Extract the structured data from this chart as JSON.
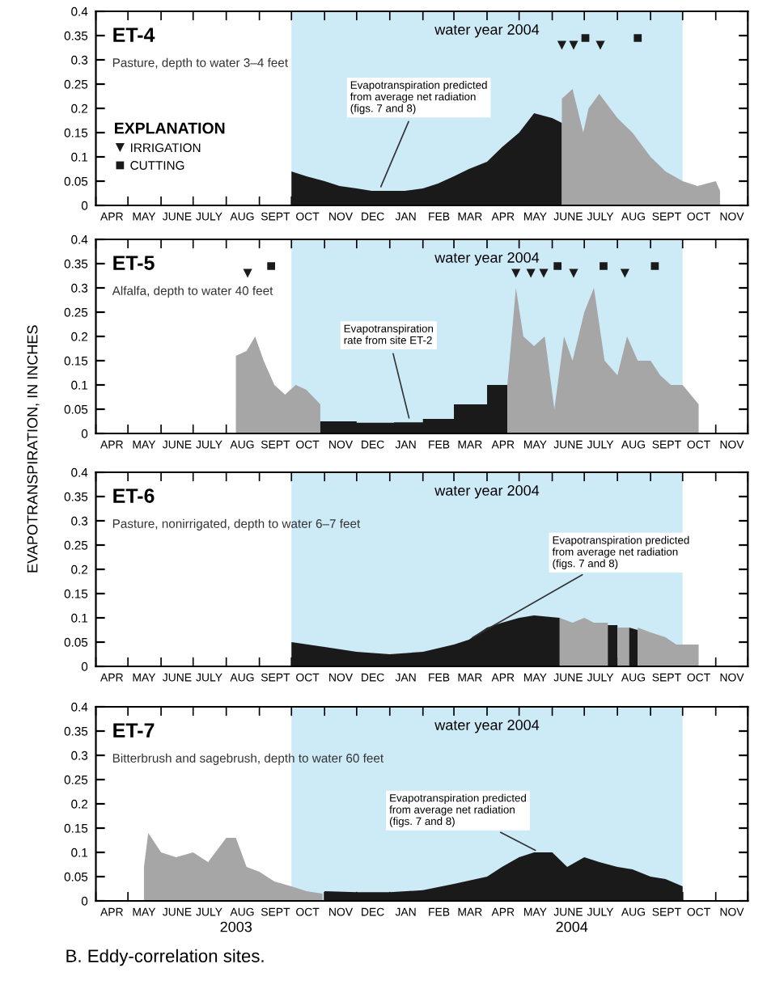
{
  "chart_data": [
    {
      "type": "area",
      "title": "ET-4",
      "subtitle": "Pasture, depth to water 3–4 feet",
      "legend_title": "EXPLANATION",
      "legend": "left",
      "xlim": [
        "2003-04-01",
        "2004-12-01"
      ],
      "ylim": [
        0,
        0.4
      ],
      "yticks": [
        0,
        0.05,
        0.1,
        0.15,
        0.2,
        0.25,
        0.3,
        0.35,
        0.4
      ],
      "xticks": [
        {
          "value": "2003-04-01",
          "label": null
        },
        {
          "value": "2003-04-16",
          "label": "APR"
        },
        {
          "value": "2003-05-01",
          "label": null
        },
        {
          "value": "2003-05-16",
          "label": "MAY"
        },
        {
          "value": "2003-06-01",
          "label": null
        },
        {
          "value": "2003-06-16",
          "label": "JUNE"
        },
        {
          "value": "2003-07-01",
          "label": null
        },
        {
          "value": "2003-07-16",
          "label": "JULY"
        },
        {
          "value": "2003-08-01",
          "label": null
        },
        {
          "value": "2003-08-16",
          "label": "AUG"
        },
        {
          "value": "2003-09-01",
          "label": null
        },
        {
          "value": "2003-09-16",
          "label": "SEPT"
        },
        {
          "value": "2003-10-01",
          "label": null
        },
        {
          "value": "2003-10-16",
          "label": "OCT"
        },
        {
          "value": "2003-11-01",
          "label": null
        },
        {
          "value": "2003-11-16",
          "label": "NOV"
        },
        {
          "value": "2003-12-01",
          "label": null
        },
        {
          "value": "2003-12-16",
          "label": "DEC"
        },
        {
          "value": "2004-01-01",
          "label": null
        },
        {
          "value": "2004-01-16",
          "label": "JAN"
        },
        {
          "value": "2004-02-01",
          "label": null
        },
        {
          "value": "2004-02-16",
          "label": "FEB"
        },
        {
          "value": "2004-03-01",
          "label": null
        },
        {
          "value": "2004-03-16",
          "label": "MAR"
        },
        {
          "value": "2004-04-01",
          "label": null
        },
        {
          "value": "2004-04-16",
          "label": "APR"
        },
        {
          "value": "2004-05-01",
          "label": null
        },
        {
          "value": "2004-05-16",
          "label": "MAY"
        },
        {
          "value": "2004-06-01",
          "label": null
        },
        {
          "value": "2004-06-16",
          "label": "JUNE"
        },
        {
          "value": "2004-07-01",
          "label": null
        },
        {
          "value": "2004-07-16",
          "label": "JULY"
        },
        {
          "value": "2004-08-01",
          "label": null
        },
        {
          "value": "2004-08-16",
          "label": "AUG"
        },
        {
          "value": "2004-09-01",
          "label": null
        },
        {
          "value": "2004-09-16",
          "label": "SEPT"
        },
        {
          "value": "2004-10-01",
          "label": null
        },
        {
          "value": "2004-10-16",
          "label": "OCT"
        },
        {
          "value": "2004-11-01",
          "label": null
        },
        {
          "value": "2004-11-16",
          "label": "NOV"
        },
        {
          "value": "2004-12-01",
          "label": null
        }
      ],
      "bands": [
        {
          "axis": "x",
          "from": "2003-10-01",
          "to": "2004-10-01",
          "label": "water year 2004",
          "color": "#cdeaf7"
        }
      ],
      "series": [
        {
          "color": "#1a1a1a",
          "x": [
            "2003-10-01",
            "2003-10-15",
            "2003-11-01",
            "2003-11-15",
            "2003-12-01",
            "2003-12-15",
            "2004-01-01",
            "2004-01-15",
            "2004-02-01",
            "2004-02-15",
            "2004-03-01",
            "2004-03-15",
            "2004-04-01",
            "2004-04-15",
            "2004-05-01",
            "2004-05-15",
            "2004-06-01",
            "2004-06-10"
          ],
          "values": [
            0.07,
            0.06,
            0.05,
            0.04,
            0.035,
            0.03,
            0.03,
            0.03,
            0.035,
            0.045,
            0.06,
            0.075,
            0.09,
            0.12,
            0.15,
            0.19,
            0.18,
            0.17
          ]
        },
        {
          "color": "#a6a6a6",
          "x": [
            "2004-06-10",
            "2004-06-20",
            "2004-06-30",
            "2004-07-05",
            "2004-07-15",
            "2004-08-01",
            "2004-08-15",
            "2004-09-01",
            "2004-09-15",
            "2004-10-01",
            "2004-10-15",
            "2004-11-01",
            "2004-11-05"
          ],
          "values": [
            0.22,
            0.24,
            0.15,
            0.2,
            0.23,
            0.18,
            0.15,
            0.1,
            0.07,
            0.05,
            0.04,
            0.05,
            0.03
          ]
        },
        {
          "type": "scatter",
          "name": "IRRIGATION",
          "marker": "triangle",
          "color": "#1a1a1a",
          "x": [
            "2004-06-10",
            "2004-06-21",
            "2004-07-16"
          ],
          "values": [
            0.33,
            0.33,
            0.33
          ]
        },
        {
          "type": "scatter",
          "name": "CUTTING",
          "marker": "square",
          "color": "#1a1a1a",
          "x": [
            "2004-07-02",
            "2004-08-20"
          ],
          "values": [
            0.345,
            0.345
          ]
        }
      ],
      "annotations": [
        {
          "text": "Evapotranspiration predicted\nfrom average net radiation\n(figs. 7 and 8)",
          "x": "2003-12-22",
          "y": 0.03
        }
      ]
    },
    {
      "type": "area",
      "title": "ET-5",
      "subtitle": "Alfalfa, depth to water 40 feet",
      "ylabel": "EVAPOTRANSPIRATION, IN INCHES",
      "xlim": [
        "2003-04-01",
        "2004-12-01"
      ],
      "ylim": [
        0,
        0.4
      ],
      "yticks": [
        0,
        0.05,
        0.1,
        0.15,
        0.2,
        0.25,
        0.3,
        0.35,
        0.4
      ],
      "xticks": [
        {
          "value": "2003-04-01",
          "label": null
        },
        {
          "value": "2003-04-16",
          "label": "APR"
        },
        {
          "value": "2003-05-01",
          "label": null
        },
        {
          "value": "2003-05-16",
          "label": "MAY"
        },
        {
          "value": "2003-06-01",
          "label": null
        },
        {
          "value": "2003-06-16",
          "label": "JUNE"
        },
        {
          "value": "2003-07-01",
          "label": null
        },
        {
          "value": "2003-07-16",
          "label": "JULY"
        },
        {
          "value": "2003-08-01",
          "label": null
        },
        {
          "value": "2003-08-16",
          "label": "AUG"
        },
        {
          "value": "2003-09-01",
          "label": null
        },
        {
          "value": "2003-09-16",
          "label": "SEPT"
        },
        {
          "value": "2003-10-01",
          "label": null
        },
        {
          "value": "2003-10-16",
          "label": "OCT"
        },
        {
          "value": "2003-11-01",
          "label": null
        },
        {
          "value": "2003-11-16",
          "label": "NOV"
        },
        {
          "value": "2003-12-01",
          "label": null
        },
        {
          "value": "2003-12-16",
          "label": "DEC"
        },
        {
          "value": "2004-01-01",
          "label": null
        },
        {
          "value": "2004-01-16",
          "label": "JAN"
        },
        {
          "value": "2004-02-01",
          "label": null
        },
        {
          "value": "2004-02-16",
          "label": "FEB"
        },
        {
          "value": "2004-03-01",
          "label": null
        },
        {
          "value": "2004-03-16",
          "label": "MAR"
        },
        {
          "value": "2004-04-01",
          "label": null
        },
        {
          "value": "2004-04-16",
          "label": "APR"
        },
        {
          "value": "2004-05-01",
          "label": null
        },
        {
          "value": "2004-05-16",
          "label": "MAY"
        },
        {
          "value": "2004-06-01",
          "label": null
        },
        {
          "value": "2004-06-16",
          "label": "JUNE"
        },
        {
          "value": "2004-07-01",
          "label": null
        },
        {
          "value": "2004-07-16",
          "label": "JULY"
        },
        {
          "value": "2004-08-01",
          "label": null
        },
        {
          "value": "2004-08-16",
          "label": "AUG"
        },
        {
          "value": "2004-09-01",
          "label": null
        },
        {
          "value": "2004-09-16",
          "label": "SEPT"
        },
        {
          "value": "2004-10-01",
          "label": null
        },
        {
          "value": "2004-10-16",
          "label": "OCT"
        },
        {
          "value": "2004-11-01",
          "label": null
        },
        {
          "value": "2004-11-16",
          "label": "NOV"
        },
        {
          "value": "2004-12-01",
          "label": null
        }
      ],
      "bands": [
        {
          "axis": "x",
          "from": "2003-10-01",
          "to": "2004-10-01",
          "label": "water year 2004",
          "color": "#cdeaf7"
        }
      ],
      "series": [
        {
          "color": "#a6a6a6",
          "x": [
            "2003-08-10",
            "2003-08-20",
            "2003-08-28",
            "2003-09-05",
            "2003-09-15",
            "2003-09-25",
            "2003-10-05",
            "2003-10-15",
            "2003-10-28"
          ],
          "values": [
            0.16,
            0.17,
            0.2,
            0.15,
            0.1,
            0.08,
            0.1,
            0.09,
            0.06
          ]
        },
        {
          "color": "#1a1a1a",
          "x": [
            "2003-10-28",
            "2003-12-01",
            "2003-12-01",
            "2004-01-05",
            "2004-01-05",
            "2004-02-01",
            "2004-02-01",
            "2004-03-01",
            "2004-03-01",
            "2004-04-01",
            "2004-04-01",
            "2004-04-20"
          ],
          "values": [
            0.025,
            0.025,
            0.022,
            0.022,
            0.023,
            0.023,
            0.03,
            0.03,
            0.06,
            0.06,
            0.1,
            0.1
          ]
        },
        {
          "color": "#a6a6a6",
          "x": [
            "2004-04-20",
            "2004-04-28",
            "2004-05-05",
            "2004-05-15",
            "2004-05-25",
            "2004-06-03",
            "2004-06-12",
            "2004-06-20",
            "2004-07-01",
            "2004-07-10",
            "2004-07-20",
            "2004-08-01",
            "2004-08-10",
            "2004-08-20",
            "2004-09-01",
            "2004-09-10",
            "2004-09-20",
            "2004-10-01",
            "2004-10-16"
          ],
          "values": [
            0.1,
            0.3,
            0.2,
            0.18,
            0.2,
            0.05,
            0.2,
            0.15,
            0.25,
            0.3,
            0.15,
            0.12,
            0.2,
            0.15,
            0.15,
            0.12,
            0.1,
            0.1,
            0.06
          ]
        },
        {
          "type": "scatter",
          "marker": "triangle",
          "color": "#1a1a1a",
          "x": [
            "2003-08-21",
            "2004-04-28",
            "2004-05-12",
            "2004-05-24",
            "2004-06-21",
            "2004-08-08"
          ],
          "values": [
            0.33,
            0.33,
            0.33,
            0.33,
            0.33,
            0.33
          ]
        },
        {
          "type": "scatter",
          "marker": "square",
          "color": "#1a1a1a",
          "x": [
            "2003-09-12",
            "2004-06-06",
            "2004-07-19",
            "2004-09-05"
          ],
          "values": [
            0.345,
            0.345,
            0.345,
            0.345
          ]
        }
      ],
      "annotations": [
        {
          "text": "Evapotranspiration\nrate from site ET-2",
          "x": "2004-01-20",
          "y": 0.023
        }
      ]
    },
    {
      "type": "area",
      "title": "ET-6",
      "subtitle": "Pasture, nonirrigated, depth to water 6–7 feet",
      "xlim": [
        "2003-04-01",
        "2004-12-01"
      ],
      "ylim": [
        0,
        0.4
      ],
      "yticks": [
        0,
        0.05,
        0.1,
        0.15,
        0.2,
        0.25,
        0.3,
        0.35,
        0.4
      ],
      "xticks": [
        {
          "value": "2003-04-01",
          "label": null
        },
        {
          "value": "2003-04-16",
          "label": "APR"
        },
        {
          "value": "2003-05-01",
          "label": null
        },
        {
          "value": "2003-05-16",
          "label": "MAY"
        },
        {
          "value": "2003-06-01",
          "label": null
        },
        {
          "value": "2003-06-16",
          "label": "JUNE"
        },
        {
          "value": "2003-07-01",
          "label": null
        },
        {
          "value": "2003-07-16",
          "label": "JULY"
        },
        {
          "value": "2003-08-01",
          "label": null
        },
        {
          "value": "2003-08-16",
          "label": "AUG"
        },
        {
          "value": "2003-09-01",
          "label": null
        },
        {
          "value": "2003-09-16",
          "label": "SEPT"
        },
        {
          "value": "2003-10-01",
          "label": null
        },
        {
          "value": "2003-10-16",
          "label": "OCT"
        },
        {
          "value": "2003-11-01",
          "label": null
        },
        {
          "value": "2003-11-16",
          "label": "NOV"
        },
        {
          "value": "2003-12-01",
          "label": null
        },
        {
          "value": "2003-12-16",
          "label": "DEC"
        },
        {
          "value": "2004-01-01",
          "label": null
        },
        {
          "value": "2004-01-16",
          "label": "JAN"
        },
        {
          "value": "2004-02-01",
          "label": null
        },
        {
          "value": "2004-02-16",
          "label": "FEB"
        },
        {
          "value": "2004-03-01",
          "label": null
        },
        {
          "value": "2004-03-16",
          "label": "MAR"
        },
        {
          "value": "2004-04-01",
          "label": null
        },
        {
          "value": "2004-04-16",
          "label": "APR"
        },
        {
          "value": "2004-05-01",
          "label": null
        },
        {
          "value": "2004-05-16",
          "label": "MAY"
        },
        {
          "value": "2004-06-01",
          "label": null
        },
        {
          "value": "2004-06-16",
          "label": "JUNE"
        },
        {
          "value": "2004-07-01",
          "label": null
        },
        {
          "value": "2004-07-16",
          "label": "JULY"
        },
        {
          "value": "2004-08-01",
          "label": null
        },
        {
          "value": "2004-08-16",
          "label": "AUG"
        },
        {
          "value": "2004-09-01",
          "label": null
        },
        {
          "value": "2004-09-16",
          "label": "SEPT"
        },
        {
          "value": "2004-10-01",
          "label": null
        },
        {
          "value": "2004-10-16",
          "label": "OCT"
        },
        {
          "value": "2004-11-01",
          "label": null
        },
        {
          "value": "2004-11-16",
          "label": "NOV"
        },
        {
          "value": "2004-12-01",
          "label": null
        }
      ],
      "bands": [
        {
          "axis": "x",
          "from": "2003-10-01",
          "to": "2004-10-01",
          "label": "water year 2004",
          "color": "#cdeaf7"
        }
      ],
      "series": [
        {
          "color": "#1a1a1a",
          "x": [
            "2003-10-01",
            "2003-11-01",
            "2003-12-01",
            "2004-01-01",
            "2004-02-01",
            "2004-03-01",
            "2004-03-15",
            "2004-04-01",
            "2004-04-15",
            "2004-05-01",
            "2004-05-15",
            "2004-06-08"
          ],
          "values": [
            0.05,
            0.04,
            0.03,
            0.025,
            0.03,
            0.045,
            0.055,
            0.08,
            0.09,
            0.1,
            0.105,
            0.1
          ]
        },
        {
          "color": "#a6a6a6",
          "x": [
            "2004-06-08",
            "2004-06-20",
            "2004-07-01",
            "2004-07-10",
            "2004-07-23"
          ],
          "values": [
            0.1,
            0.09,
            0.1,
            0.09,
            0.09
          ]
        },
        {
          "color": "#1a1a1a",
          "x": [
            "2004-07-23",
            "2004-08-01"
          ],
          "values": [
            0.085,
            0.085
          ]
        },
        {
          "color": "#a6a6a6",
          "x": [
            "2004-08-01",
            "2004-08-12"
          ],
          "values": [
            0.08,
            0.08
          ]
        },
        {
          "color": "#1a1a1a",
          "x": [
            "2004-08-12",
            "2004-08-20"
          ],
          "values": [
            0.08,
            0.075
          ]
        },
        {
          "color": "#a6a6a6",
          "x": [
            "2004-08-20",
            "2004-09-01",
            "2004-09-15",
            "2004-09-25",
            "2004-10-16"
          ],
          "values": [
            0.08,
            0.07,
            0.06,
            0.045,
            0.045
          ]
        }
      ],
      "annotations": [
        {
          "text": "Evapotranspiration predicted\nfrom average net radiation\n(figs. 7 and 8)",
          "x": "2004-03-15",
          "y": 0.055
        }
      ]
    },
    {
      "type": "area",
      "title": "ET-7",
      "subtitle": "Bitterbrush and sagebrush, depth to water 60 feet",
      "xlim": [
        "2003-04-01",
        "2004-12-01"
      ],
      "ylim": [
        0,
        0.4
      ],
      "yticks": [
        0,
        0.05,
        0.1,
        0.15,
        0.2,
        0.25,
        0.3,
        0.35,
        0.4
      ],
      "xticks": [
        {
          "value": "2003-04-01",
          "label": null
        },
        {
          "value": "2003-04-16",
          "label": "APR"
        },
        {
          "value": "2003-05-01",
          "label": null
        },
        {
          "value": "2003-05-16",
          "label": "MAY"
        },
        {
          "value": "2003-06-01",
          "label": null
        },
        {
          "value": "2003-06-16",
          "label": "JUNE"
        },
        {
          "value": "2003-07-01",
          "label": null
        },
        {
          "value": "2003-07-16",
          "label": "JULY"
        },
        {
          "value": "2003-08-01",
          "label": null
        },
        {
          "value": "2003-08-16",
          "label": "AUG"
        },
        {
          "value": "2003-09-01",
          "label": null
        },
        {
          "value": "2003-09-16",
          "label": "SEPT"
        },
        {
          "value": "2003-10-01",
          "label": null
        },
        {
          "value": "2003-10-16",
          "label": "OCT"
        },
        {
          "value": "2003-11-01",
          "label": null
        },
        {
          "value": "2003-11-16",
          "label": "NOV"
        },
        {
          "value": "2003-12-01",
          "label": null
        },
        {
          "value": "2003-12-16",
          "label": "DEC"
        },
        {
          "value": "2004-01-01",
          "label": null
        },
        {
          "value": "2004-01-16",
          "label": "JAN"
        },
        {
          "value": "2004-02-01",
          "label": null
        },
        {
          "value": "2004-02-16",
          "label": "FEB"
        },
        {
          "value": "2004-03-01",
          "label": null
        },
        {
          "value": "2004-03-16",
          "label": "MAR"
        },
        {
          "value": "2004-04-01",
          "label": null
        },
        {
          "value": "2004-04-16",
          "label": "APR"
        },
        {
          "value": "2004-05-01",
          "label": null
        },
        {
          "value": "2004-05-16",
          "label": "MAY"
        },
        {
          "value": "2004-06-01",
          "label": null
        },
        {
          "value": "2004-06-16",
          "label": "JUNE"
        },
        {
          "value": "2004-07-01",
          "label": null
        },
        {
          "value": "2004-07-16",
          "label": "JULY"
        },
        {
          "value": "2004-08-01",
          "label": null
        },
        {
          "value": "2004-08-16",
          "label": "AUG"
        },
        {
          "value": "2004-09-01",
          "label": null
        },
        {
          "value": "2004-09-16",
          "label": "SEPT"
        },
        {
          "value": "2004-10-01",
          "label": null
        },
        {
          "value": "2004-10-16",
          "label": "OCT"
        },
        {
          "value": "2004-11-01",
          "label": null
        },
        {
          "value": "2004-11-16",
          "label": "NOV"
        },
        {
          "value": "2004-12-01",
          "label": null
        }
      ],
      "bands": [
        {
          "axis": "x",
          "from": "2003-10-01",
          "to": "2004-10-01",
          "label": "water year 2004",
          "color": "#cdeaf7"
        }
      ],
      "series": [
        {
          "color": "#a6a6a6",
          "x": [
            "2003-05-16",
            "2003-05-20",
            "2003-06-01",
            "2003-06-15",
            "2003-07-01",
            "2003-07-15",
            "2003-08-01",
            "2003-08-10",
            "2003-08-20",
            "2003-09-01",
            "2003-09-15",
            "2003-10-01",
            "2003-10-15",
            "2003-10-30"
          ],
          "values": [
            0.07,
            0.14,
            0.1,
            0.09,
            0.1,
            0.08,
            0.13,
            0.13,
            0.07,
            0.06,
            0.04,
            0.03,
            0.02,
            0.015
          ]
        },
        {
          "color": "#1a1a1a",
          "x": [
            "2003-11-01",
            "2003-12-01",
            "2004-01-01",
            "2004-02-01",
            "2004-03-01",
            "2004-04-01",
            "2004-04-15",
            "2004-05-01",
            "2004-05-15",
            "2004-06-01",
            "2004-06-15",
            "2004-07-01",
            "2004-07-15",
            "2004-08-01",
            "2004-08-15",
            "2004-09-01",
            "2004-09-15",
            "2004-10-01"
          ],
          "values": [
            0.02,
            0.018,
            0.018,
            0.022,
            0.035,
            0.05,
            0.07,
            0.09,
            0.1,
            0.1,
            0.07,
            0.09,
            0.08,
            0.07,
            0.065,
            0.05,
            0.045,
            0.03
          ]
        }
      ],
      "annotations": [
        {
          "text": "Evapotranspiration predicted\nfrom average net radiation\n(figs. 7 and 8)",
          "x": "2004-05-20",
          "y": 0.1
        },
        "2003",
        "2004",
        "B. Eddy-correlation sites."
      ]
    }
  ]
}
